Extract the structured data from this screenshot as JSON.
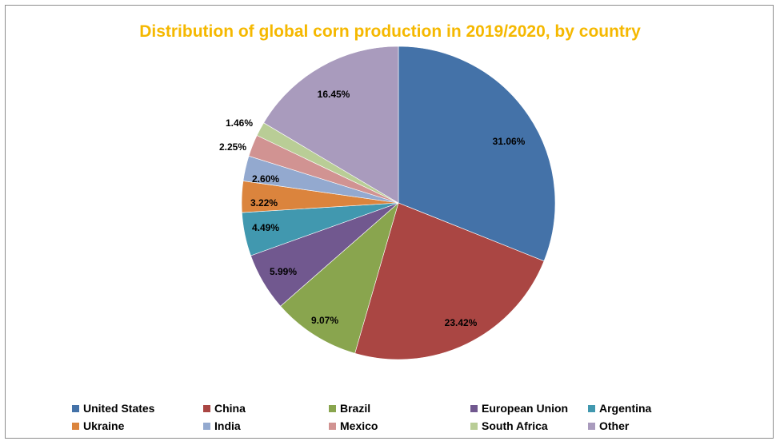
{
  "chart_data": {
    "type": "pie",
    "title": "Distribution of global corn production in 2019/2020,  by country",
    "slices": [
      {
        "name": "United States",
        "value": 31.06,
        "label": "31.06%",
        "color": "#4472a8"
      },
      {
        "name": "China",
        "value": 23.42,
        "label": "23.42%",
        "color": "#aa4643"
      },
      {
        "name": "Brazil",
        "value": 9.07,
        "label": "9.07%",
        "color": "#89a54e"
      },
      {
        "name": "European Union",
        "value": 5.99,
        "label": "5.99%",
        "color": "#71588f"
      },
      {
        "name": "Argentina",
        "value": 4.49,
        "label": "4.49%",
        "color": "#4198af"
      },
      {
        "name": "Ukraine",
        "value": 3.22,
        "label": "3.22%",
        "color": "#db843d"
      },
      {
        "name": "India",
        "value": 2.6,
        "label": "2.60%",
        "color": "#93a9cf"
      },
      {
        "name": "Mexico",
        "value": 2.25,
        "label": "2.25%",
        "color": "#d19392"
      },
      {
        "name": "South Africa",
        "value": 1.46,
        "label": "1.46%",
        "color": "#b9cd96"
      },
      {
        "name": "Other",
        "value": 16.45,
        "label": "16.45%",
        "color": "#a99bbd"
      }
    ],
    "legend_position": "bottom"
  }
}
